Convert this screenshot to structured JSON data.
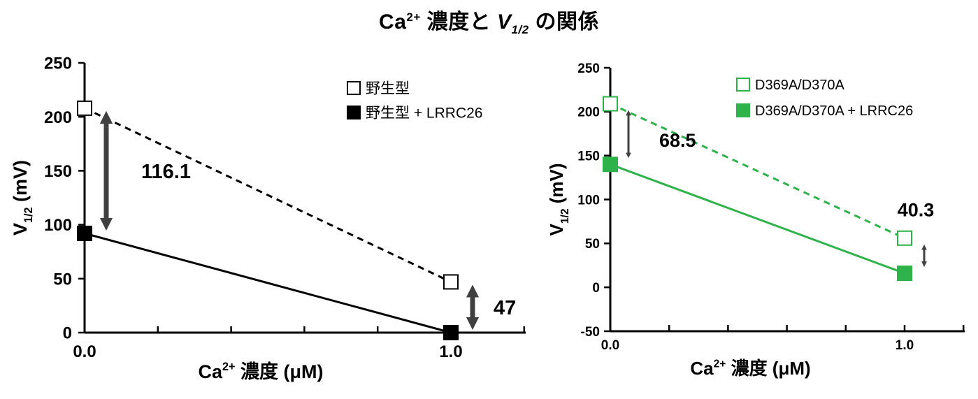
{
  "figure_title": {
    "prefix": "Ca",
    "prefix_sup": "2+",
    "middle": " 濃度と ",
    "v": "V",
    "v_sub": "1/2",
    "suffix": " の関係"
  },
  "chart_data": [
    {
      "type": "line",
      "title": "",
      "xlabel": "Ca²⁺ 濃度 (μM)",
      "xlabel_parts": {
        "base": "Ca",
        "sup": "2+",
        "rest": " 濃度 (μM)"
      },
      "ylabel_parts": {
        "v": "V",
        "sub": "1/2",
        "rest": " (mV)"
      },
      "x": [
        0.0,
        1.0
      ],
      "x_tick_labels": [
        "0.0",
        "1.0"
      ],
      "xlim": [
        0.0,
        1.2
      ],
      "ylim": [
        0,
        250
      ],
      "y_ticks": [
        0,
        50,
        100,
        150,
        200,
        250
      ],
      "grid": false,
      "legend_position": "top-right",
      "series": [
        {
          "name": "野生型",
          "values": [
            208,
            47
          ],
          "marker": "open-square",
          "line": "dashed",
          "color": "#000000"
        },
        {
          "name": "野生型 + LRRC26",
          "values": [
            92,
            0
          ],
          "marker": "filled-square",
          "line": "solid",
          "color": "#000000"
        }
      ],
      "annotations": [
        {
          "text": "116.1",
          "x": 0.0,
          "from": 92,
          "to": 208
        },
        {
          "text": "47",
          "x": 1.0,
          "from": 0,
          "to": 47
        }
      ],
      "arrow_color": "#404040"
    },
    {
      "type": "line",
      "title": "",
      "xlabel": "Ca²⁺ 濃度 (μM)",
      "xlabel_parts": {
        "base": "Ca",
        "sup": "2+",
        "rest": " 濃度 (μM)"
      },
      "ylabel_parts": {
        "v": "V",
        "sub": "1/2",
        "rest": " (mV)"
      },
      "x": [
        0.0,
        1.0
      ],
      "x_tick_labels": [
        "0.0",
        "1.0"
      ],
      "xlim": [
        0.0,
        1.2
      ],
      "ylim": [
        -50,
        250
      ],
      "y_ticks": [
        -50,
        0,
        50,
        100,
        150,
        200,
        250
      ],
      "grid": false,
      "legend_position": "top-right",
      "series": [
        {
          "name": "D369A/D370A",
          "values": [
            209,
            56
          ],
          "marker": "open-square",
          "line": "dashed",
          "color": "#2db34a"
        },
        {
          "name": "D369A/D370A + LRRC26",
          "values": [
            140,
            16
          ],
          "marker": "filled-square",
          "line": "solid",
          "color": "#2db34a"
        }
      ],
      "annotations": [
        {
          "text": "68.5",
          "x": 0.0,
          "from": 140,
          "to": 209
        },
        {
          "text": "40.3",
          "x": 1.0,
          "from": 16,
          "to": 56
        }
      ],
      "arrow_color": "#404040"
    }
  ]
}
